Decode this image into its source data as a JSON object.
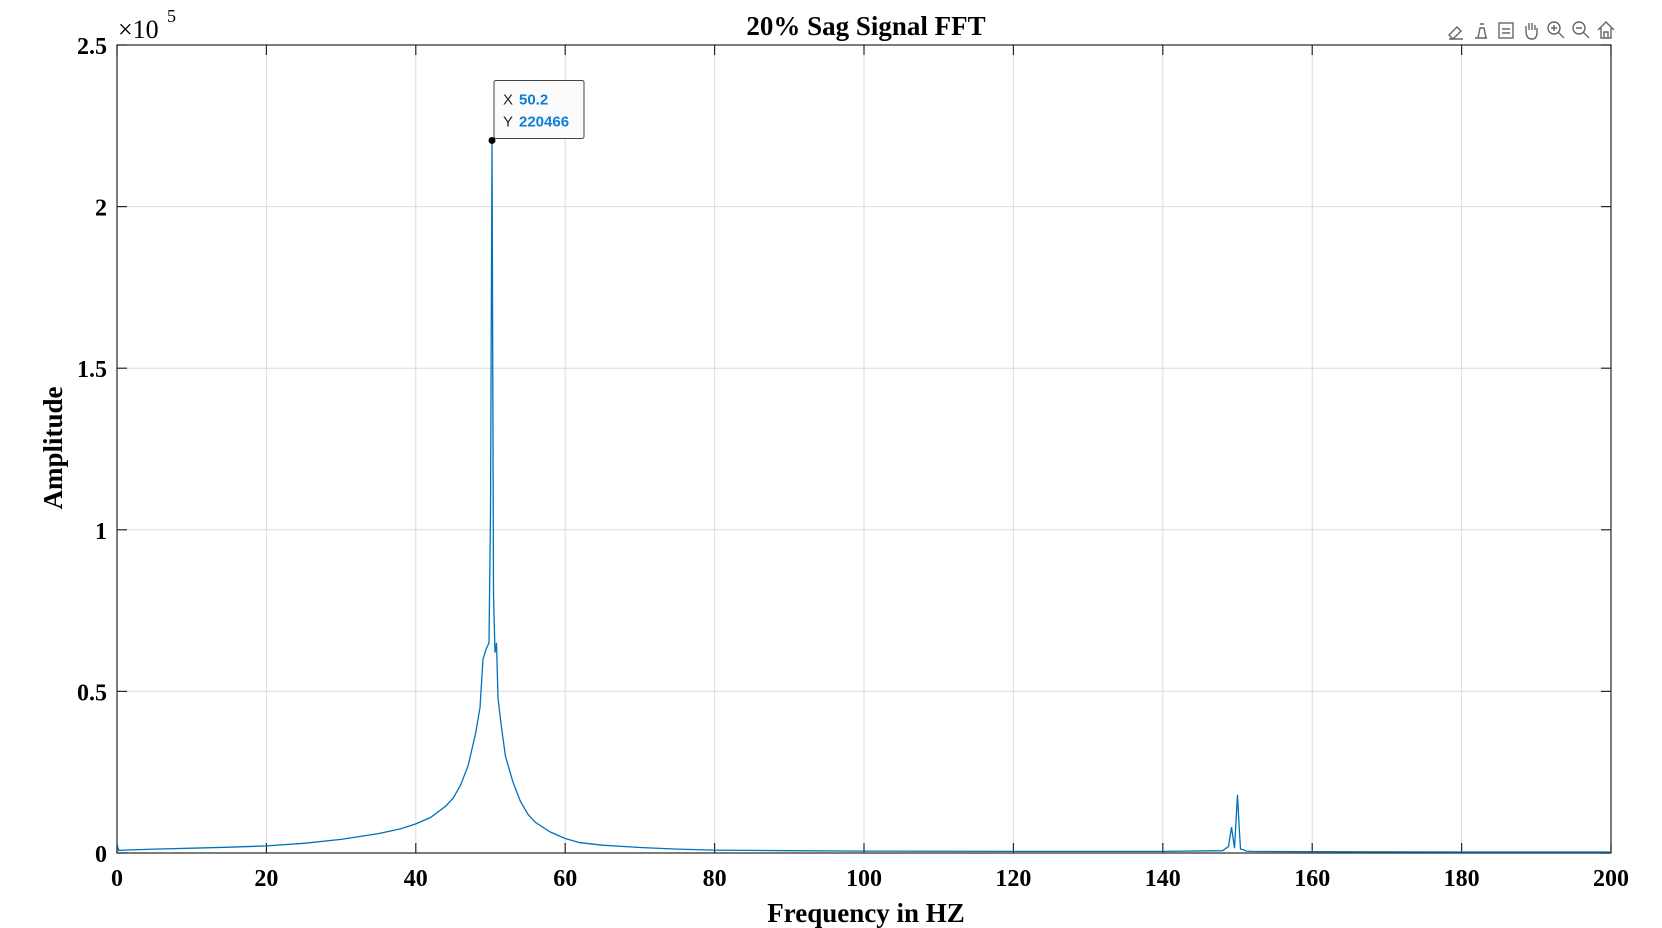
{
  "chart_data": {
    "type": "line",
    "title": "20% Sag Signal FFT",
    "xlabel": "Frequency in HZ",
    "ylabel": "Amplitude",
    "xlim": [
      0,
      200
    ],
    "ylim": [
      0,
      250000
    ],
    "x_ticks": [
      0,
      20,
      40,
      60,
      80,
      100,
      120,
      140,
      160,
      180,
      200
    ],
    "x_tick_labels": [
      "0",
      "20",
      "40",
      "60",
      "80",
      "100",
      "120",
      "140",
      "160",
      "180",
      "200"
    ],
    "y_ticks": [
      0,
      50000,
      100000,
      150000,
      200000,
      250000
    ],
    "y_tick_labels": [
      "0",
      "0.5",
      "1",
      "1.5",
      "2",
      "2.5"
    ],
    "y_multiplier": {
      "base": "×10",
      "exponent": "5"
    },
    "grid": true,
    "series": [
      {
        "color": "#0072bd",
        "x": [
          0,
          0.2,
          1,
          5,
          10,
          15,
          20,
          25,
          30,
          35,
          38,
          40,
          42,
          44,
          45,
          46,
          47,
          48,
          48.6,
          49,
          49.4,
          49.8,
          50,
          50.2,
          50.4,
          50.6,
          50.8,
          51,
          51.4,
          52,
          53,
          54,
          55,
          56,
          58,
          60,
          62,
          65,
          70,
          75,
          80,
          90,
          100,
          120,
          140,
          148,
          148.8,
          149.2,
          149.6,
          150,
          150.2,
          150.4,
          150.8,
          151.2,
          152,
          160,
          180,
          200
        ],
        "y": [
          3000,
          800,
          900,
          1200,
          1500,
          1800,
          2200,
          3000,
          4200,
          6000,
          7500,
          9000,
          11000,
          14500,
          17000,
          21000,
          27000,
          37000,
          45000,
          60000,
          63000,
          65000,
          105000,
          220466,
          80000,
          62000,
          65000,
          48000,
          40000,
          30000,
          22000,
          16000,
          12000,
          9500,
          6500,
          4500,
          3200,
          2400,
          1700,
          1200,
          900,
          700,
          600,
          500,
          500,
          700,
          2000,
          8000,
          1500,
          18000,
          9000,
          1200,
          1000,
          600,
          500,
          400,
          300,
          300
        ]
      }
    ],
    "datatip": {
      "x_key": "X",
      "x_value": "50.2",
      "y_key": "Y",
      "y_value": "220466",
      "point": [
        50.2,
        220466
      ]
    }
  },
  "toolbar": {
    "icons": [
      "brush-icon",
      "data-tip-icon",
      "restore-view-icon",
      "pan-icon",
      "zoom-in-icon",
      "zoom-out-icon",
      "home-icon"
    ]
  }
}
